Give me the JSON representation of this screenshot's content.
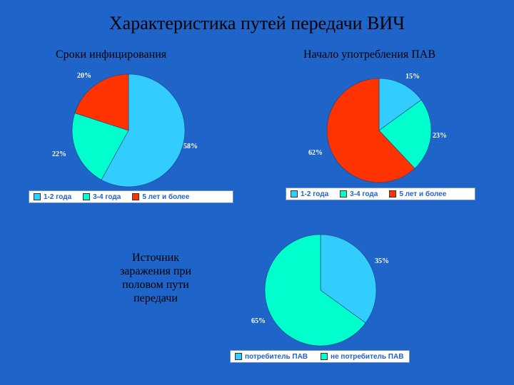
{
  "title": "Характеристика путей передачи ВИЧ",
  "side_text": "Источник заражения при половом пути передачи",
  "colors": {
    "background": "#1f64c8",
    "light_blue": "#33ccff",
    "teal": "#00ffcc",
    "red": "#ff3300"
  },
  "chart_data": [
    {
      "type": "pie",
      "title": "Сроки инфицирования",
      "categories": [
        "1-2 года",
        "3-4 года",
        "5 лет и более"
      ],
      "values": [
        58,
        22,
        20
      ],
      "value_labels": [
        "58%",
        "22%",
        "20%"
      ],
      "colors": [
        "#33ccff",
        "#00ffcc",
        "#ff3300"
      ],
      "legend_position": "bottom"
    },
    {
      "type": "pie",
      "title": "Начало употребления ПАВ",
      "categories": [
        "1-2 года",
        "3-4 года",
        "5 лет и более"
      ],
      "values": [
        15,
        23,
        62
      ],
      "value_labels": [
        "15%",
        "23%",
        "62%"
      ],
      "colors": [
        "#33ccff",
        "#00ffcc",
        "#ff3300"
      ],
      "legend_position": "bottom"
    },
    {
      "type": "pie",
      "title": "",
      "categories": [
        "потребитель ПАВ",
        "не потребитель ПАВ"
      ],
      "values": [
        35,
        65
      ],
      "value_labels": [
        "35%",
        "65%"
      ],
      "colors": [
        "#33ccff",
        "#00ffcc"
      ],
      "legend_position": "bottom"
    }
  ]
}
